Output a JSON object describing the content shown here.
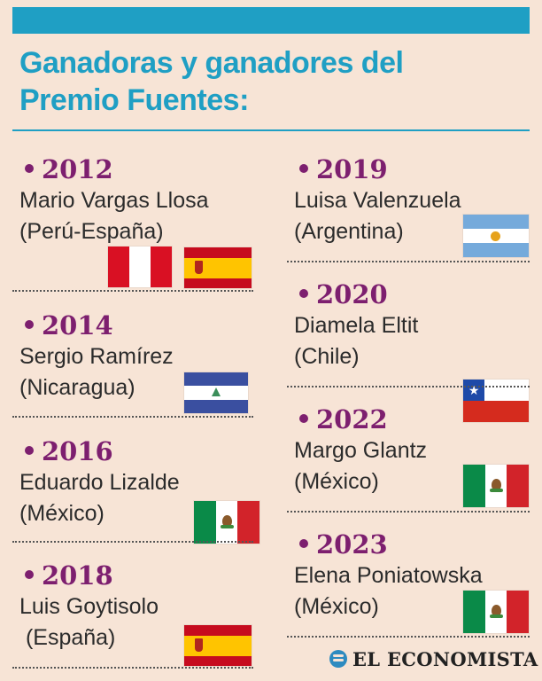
{
  "header": {
    "title_line1": "Ganadoras y ganadores del",
    "title_line2": "Premio Fuentes:"
  },
  "winners": [
    {
      "year": "2012",
      "name": "Mario Vargas Llosa",
      "country": "(Perú-España)",
      "flags": [
        "peru-flag-icon",
        "spain-flag-icon"
      ]
    },
    {
      "year": "2014",
      "name": "Sergio Ramírez",
      "country": "(Nicaragua)",
      "flags": [
        "nicaragua-flag-icon"
      ]
    },
    {
      "year": "2016",
      "name": "Eduardo Lizalde",
      "country": "(México)",
      "flags": [
        "mexico-flag-icon"
      ]
    },
    {
      "year": "2018",
      "name": "Luis Goytisolo",
      "country": " (España)",
      "flags": [
        "spain-flag-icon"
      ]
    },
    {
      "year": "2019",
      "name": "Luisa Valenzuela",
      "country": "(Argentina)",
      "flags": [
        "argentina-flag-icon"
      ]
    },
    {
      "year": "2020",
      "name": "Diamela Eltit",
      "country": "(Chile)",
      "flags": [
        "chile-flag-icon"
      ]
    },
    {
      "year": "2022",
      "name": "Margo Glantz",
      "country": "(México)",
      "flags": [
        "mexico-flag-icon"
      ]
    },
    {
      "year": "2023",
      "name": "Elena Poniatowska",
      "country": "(México)",
      "flags": [
        "mexico-flag-icon"
      ]
    }
  ],
  "footer": {
    "logo_text": "EL ECONOMISTA"
  },
  "colors": {
    "title_blue": "#1f9fc4",
    "year_purple": "#7d1f6f",
    "background": "#f7e4d6"
  }
}
